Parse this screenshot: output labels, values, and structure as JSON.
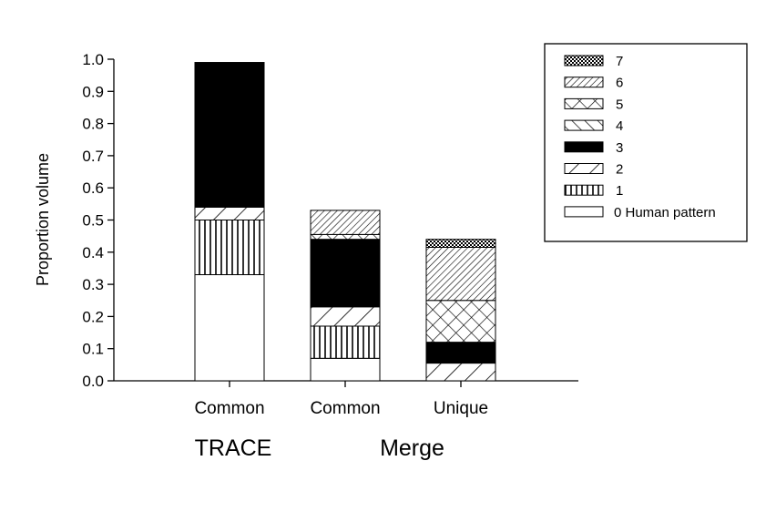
{
  "chart_data": {
    "type": "bar",
    "stacked": true,
    "ylabel": "Proportion volume",
    "ylim": [
      0,
      1.0
    ],
    "yticks": [
      "0.0",
      "0.1",
      "0.2",
      "0.3",
      "0.4",
      "0.5",
      "0.6",
      "0.7",
      "0.8",
      "0.9",
      "1.0"
    ],
    "categories": [
      "Common",
      "Common",
      "Unique"
    ],
    "groups": [
      {
        "label": "TRACE",
        "categories": [
          0
        ]
      },
      {
        "label": "Merge",
        "categories": [
          1,
          2
        ]
      }
    ],
    "series": [
      {
        "legend": "0 Human pattern",
        "pattern": "blank",
        "values": [
          0.33,
          0.07,
          0.0
        ]
      },
      {
        "legend": "1",
        "pattern": "vertical-lines",
        "values": [
          0.17,
          0.1,
          0.0
        ]
      },
      {
        "legend": "2",
        "pattern": "diagonal-wide",
        "values": [
          0.04,
          0.06,
          0.055
        ]
      },
      {
        "legend": "3",
        "pattern": "solid-black",
        "values": [
          0.45,
          0.21,
          0.065
        ]
      },
      {
        "legend": "4",
        "pattern": "back-diagonal",
        "values": [
          0.0,
          0.0,
          0.0
        ]
      },
      {
        "legend": "5",
        "pattern": "crosshatch",
        "values": [
          0.0,
          0.015,
          0.13
        ]
      },
      {
        "legend": "6",
        "pattern": "diagonal-dense",
        "values": [
          0.0,
          0.075,
          0.165
        ]
      },
      {
        "legend": "7",
        "pattern": "fine-check",
        "values": [
          0.0,
          0.0,
          0.025
        ]
      }
    ],
    "legend_position": "top-right",
    "grid": false
  }
}
